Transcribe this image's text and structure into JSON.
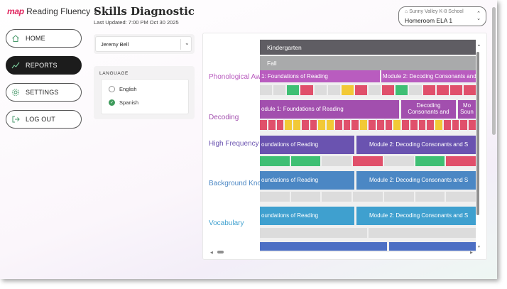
{
  "brand": {
    "map": "map",
    "product": "Reading Fluency",
    "back_glyph": "‹"
  },
  "nav": [
    {
      "id": "home",
      "label": "HOME",
      "icon": "home-icon",
      "active": false
    },
    {
      "id": "reports",
      "label": "REPORTS",
      "icon": "chart-line-icon",
      "active": true
    },
    {
      "id": "settings",
      "label": "SETTINGS",
      "icon": "gear-icon",
      "active": false
    },
    {
      "id": "logout",
      "label": "LOG OUT",
      "icon": "logout-icon",
      "active": false
    }
  ],
  "header": {
    "title": "Skills Diagnostic",
    "updated": "Last Updated: 7:00 PM Oct 30 2025"
  },
  "school_select": {
    "school": "Sunny Valley K-8 School",
    "class": "Homeroom ELA 1"
  },
  "student_select": {
    "value": "Jeremy Bell"
  },
  "language": {
    "label": "LANGUAGE",
    "options": [
      {
        "label": "English",
        "selected": false
      },
      {
        "label": "Spanish",
        "selected": true
      }
    ]
  },
  "grid": {
    "grade": "Kindergarten",
    "season": "Fall",
    "colors": {
      "green": "#3fbf74",
      "red": "#e0506b",
      "yellow": "#f2c936",
      "gray": "#dcdcdc"
    },
    "rows": [
      {
        "label": "Phonological Awareness",
        "color": "#b95cbf",
        "modules": [
          {
            "text": "1: Foundations of Reading",
            "color": "#b95cbf"
          },
          {
            "text": "Module 2: Decoding Consonants and",
            "color": "#b95cbf"
          }
        ],
        "cells": [
          "gray",
          "gray",
          "green",
          "red",
          "gray",
          "gray",
          "yellow",
          "red",
          "gray",
          "red",
          "green",
          "gray",
          "red",
          "red",
          "red",
          "red"
        ]
      },
      {
        "label": "Decoding",
        "color": "#a24fae",
        "modules": [
          {
            "text": "odule 1: Foundations of Reading",
            "color": "#a24fae"
          },
          {
            "text": "Decoding Consonants and",
            "color": "#a24fae"
          },
          {
            "text": "Mo Soun",
            "color": "#a24fae"
          }
        ],
        "cells": [
          "red",
          "red",
          "red",
          "yellow",
          "yellow",
          "red",
          "red",
          "yellow",
          "yellow",
          "red",
          "red",
          "red",
          "yellow",
          "red",
          "red",
          "red",
          "yellow",
          "red",
          "red",
          "red",
          "red",
          "yellow",
          "red",
          "red",
          "red",
          "red"
        ]
      },
      {
        "label": "High Frequency Words",
        "color": "#6a53b0",
        "modules": [
          {
            "text": "oundations of Reading",
            "color": "#6a53b0"
          },
          {
            "text": "Module 2: Decoding Consonants and S",
            "color": "#6a53b0"
          }
        ],
        "cells": [
          "green",
          "green",
          "gray",
          "red",
          "gray",
          "green",
          "red"
        ]
      },
      {
        "label": "Background Knowledge",
        "color": "#4b87c4",
        "modules": [
          {
            "text": "oundations of Reading",
            "color": "#4b87c4"
          },
          {
            "text": "Module 2: Decoding Consonants and S",
            "color": "#4b87c4"
          }
        ],
        "cells": [
          "gray",
          "gray",
          "gray",
          "gray",
          "gray",
          "gray",
          "gray"
        ]
      },
      {
        "label": "Vocabulary",
        "color": "#3fa0cf",
        "modules": [
          {
            "text": "oundations of Reading",
            "color": "#3fa0cf"
          },
          {
            "text": "Module 2: Decoding Consonants and S",
            "color": "#3fa0cf"
          }
        ],
        "cells": [
          "gray",
          "gray"
        ]
      }
    ]
  }
}
